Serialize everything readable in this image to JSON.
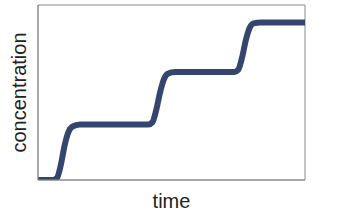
{
  "chart_data": {
    "type": "line",
    "xlabel": "time",
    "ylabel": "concentration",
    "x": [
      0,
      0.8,
      1.0,
      1.2,
      1.4,
      1.6,
      1.8,
      2.2,
      5.8,
      6.0,
      6.2,
      6.4,
      6.6,
      6.8,
      7.2,
      10.3,
      10.5,
      10.7,
      10.9,
      11.1,
      11.3,
      11.7,
      14
    ],
    "values": [
      0,
      0,
      0.05,
      0.35,
      0.8,
      1.1,
      1.22,
      1.27,
      1.27,
      1.32,
      1.6,
      2.0,
      2.3,
      2.43,
      2.47,
      2.47,
      2.52,
      2.8,
      3.2,
      3.48,
      3.58,
      3.6,
      3.6
    ],
    "color": "#34466e",
    "xlim": [
      0,
      14
    ],
    "xticks": [
      0,
      1,
      2,
      3,
      4,
      5,
      6,
      7,
      8,
      9,
      10,
      11,
      12,
      13,
      14
    ],
    "ylim": [
      0,
      4
    ],
    "yticks": [
      0,
      1,
      2,
      3,
      4
    ],
    "grid": true,
    "tick_labels": false
  }
}
